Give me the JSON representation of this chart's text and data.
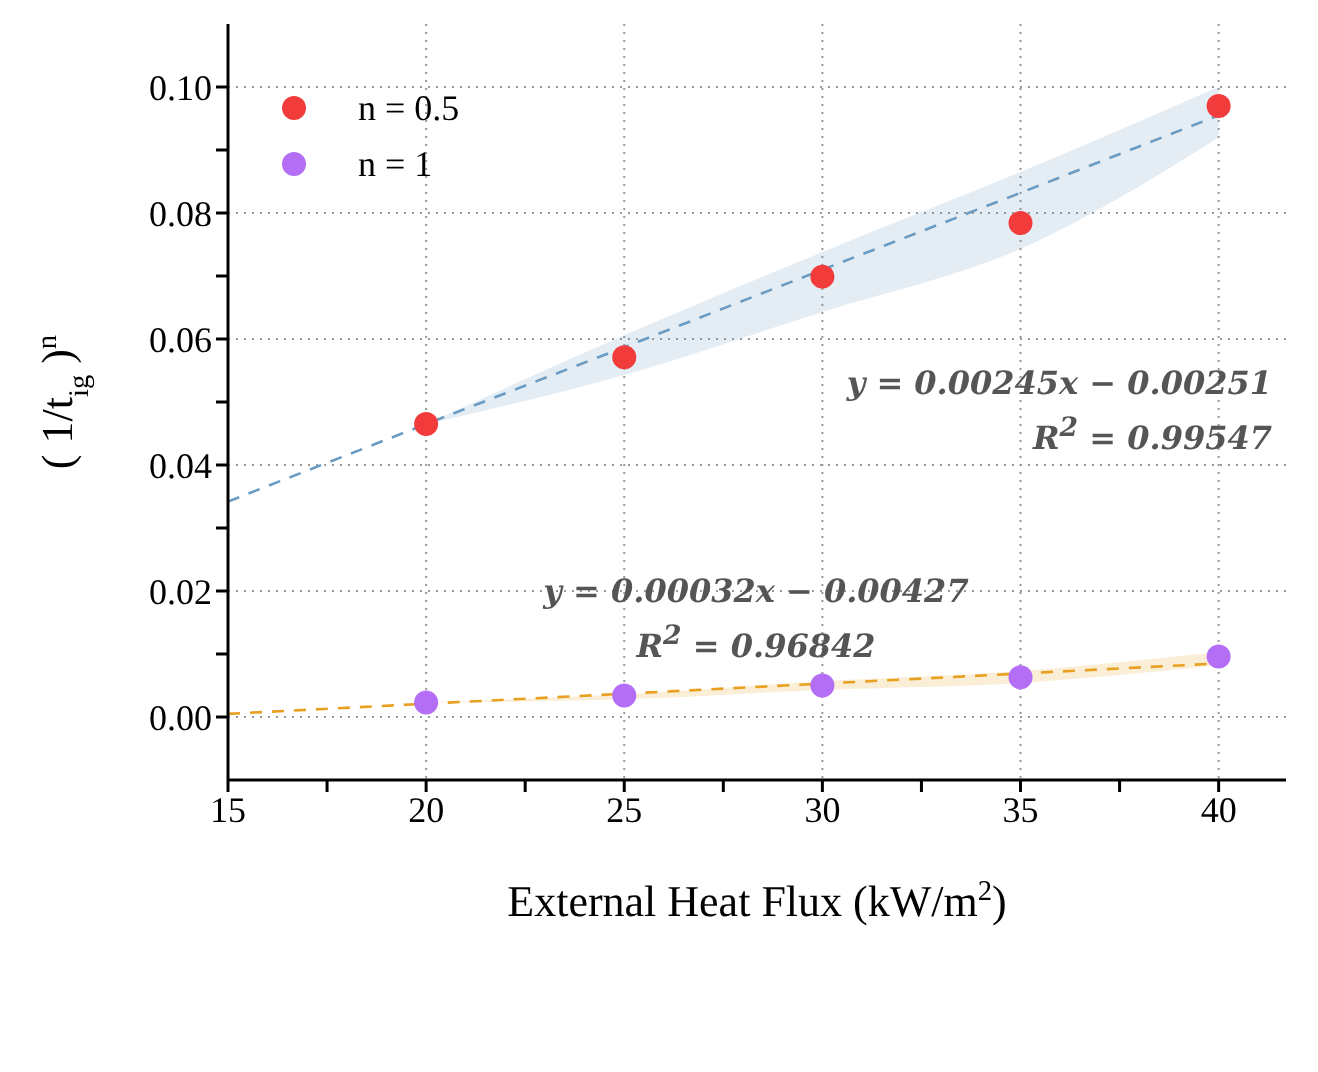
{
  "chart_data": {
    "type": "scatter",
    "xlabel": "External Heat Flux (kW/m$^{2}$)",
    "ylabel": "( 1/t$_{ig}$ )$^{n}$",
    "xlim": [
      15,
      41.7
    ],
    "ylim": [
      -0.01,
      0.11
    ],
    "xticks": [
      15,
      {
        "value": 17.5,
        "label": null
      },
      20,
      {
        "value": 22.5,
        "label": null
      },
      25,
      {
        "value": 27.5,
        "label": null
      },
      30,
      {
        "value": 32.5,
        "label": null
      },
      35,
      {
        "value": 37.5,
        "label": null
      },
      40
    ],
    "yticks": [
      {
        "value": 0,
        "label": "0.00"
      },
      {
        "value": 0.01,
        "label": null
      },
      {
        "value": 0.02,
        "label": "0.02"
      },
      {
        "value": 0.03,
        "label": null
      },
      {
        "value": 0.04,
        "label": "0.04"
      },
      {
        "value": 0.05,
        "label": null
      },
      {
        "value": 0.06,
        "label": "0.06"
      },
      {
        "value": 0.07,
        "label": null
      },
      {
        "value": 0.08,
        "label": "0.08"
      },
      {
        "value": 0.09,
        "label": null
      },
      {
        "value": 0.1,
        "label": "0.10"
      }
    ],
    "grid": true,
    "legend": "top left",
    "marker": "circle",
    "series": [
      {
        "name": "n = 0.5",
        "color": "#f23b3b",
        "x": [
          20,
          25,
          30,
          35,
          40
        ],
        "values": [
          0.0465,
          0.0571,
          0.0699,
          0.0784,
          0.097
        ]
      },
      {
        "name": "n = 1",
        "color": "#b36ef5",
        "x": [
          20,
          25,
          30,
          35,
          40
        ],
        "values": [
          0.0023,
          0.0034,
          0.005,
          0.0063,
          0.0096
        ]
      },
      {
        "type": "line",
        "color": "#6a9bc3",
        "line_style": "dashed",
        "marker": "none",
        "x": [
          15,
          20,
          25,
          30,
          35,
          40
        ],
        "values": [
          0.0342,
          0.0465,
          0.0587,
          0.071,
          0.0832,
          0.0955
        ],
        "lower": [
          null,
          0.0465,
          0.0543,
          0.0643,
          0.0743,
          0.092
        ],
        "upper": [
          null,
          0.0465,
          0.0606,
          0.0738,
          0.0865,
          0.1
        ]
      },
      {
        "type": "line",
        "color": "#e8a020",
        "line_style": "dashed",
        "marker": "none",
        "x": [
          15,
          20,
          25,
          30,
          35,
          40
        ],
        "values": [
          0.0005,
          0.0021,
          0.0037,
          0.0053,
          0.0069,
          0.0085
        ],
        "lower": [
          null,
          0.0023,
          0.0028,
          0.0043,
          0.0054,
          0.0082
        ],
        "upper": [
          null,
          0.0023,
          0.0036,
          0.0057,
          0.0073,
          0.0103
        ]
      }
    ],
    "annotations": [
      "y = 0.00245x − 0.00251",
      "R$^{2}$ = 0.99547",
      "y = 0.00032x − 0.00427",
      "R$^{2}$ = 0.96842"
    ]
  }
}
